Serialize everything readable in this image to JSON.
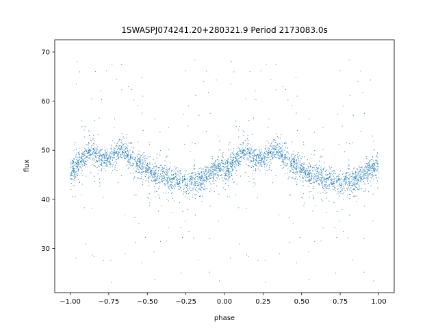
{
  "chart_data": {
    "type": "scatter",
    "title": "1SWASPJ074241.20+280321.9 Period 2173083.0s",
    "xlabel": "phase",
    "ylabel": "flux",
    "xlim": [
      -1.1,
      1.1
    ],
    "ylim": [
      21,
      72.5
    ],
    "x_ticks": [
      -1.0,
      -0.75,
      -0.5,
      -0.25,
      0.0,
      0.25,
      0.5,
      0.75,
      1.0
    ],
    "x_tick_labels": [
      "−1.00",
      "−0.75",
      "−0.50",
      "−0.25",
      "0.00",
      "0.25",
      "0.50",
      "0.75",
      "1.00"
    ],
    "y_ticks": [
      30,
      40,
      50,
      60,
      70
    ],
    "y_tick_labels": [
      "30",
      "40",
      "50",
      "60",
      "70"
    ],
    "grid": false,
    "legend": "none",
    "marker_color": "#1f77b4",
    "symmetry": "phase-folded light curve duplicated: points at phase p also plotted at p+1 (range −1 to 1)",
    "phase_profile": [
      {
        "phase": 0.0,
        "flux": 46
      },
      {
        "phase": 0.05,
        "flux": 47
      },
      {
        "phase": 0.1,
        "flux": 49
      },
      {
        "phase": 0.15,
        "flux": 50
      },
      {
        "phase": 0.2,
        "flux": 48
      },
      {
        "phase": 0.25,
        "flux": 48
      },
      {
        "phase": 0.3,
        "flux": 50
      },
      {
        "phase": 0.35,
        "flux": 50
      },
      {
        "phase": 0.4,
        "flux": 48
      },
      {
        "phase": 0.45,
        "flux": 47
      },
      {
        "phase": 0.5,
        "flux": 46
      },
      {
        "phase": 0.55,
        "flux": 45
      },
      {
        "phase": 0.6,
        "flux": 45
      },
      {
        "phase": 0.65,
        "flux": 44
      },
      {
        "phase": 0.7,
        "flux": 44
      },
      {
        "phase": 0.75,
        "flux": 43
      },
      {
        "phase": 0.8,
        "flux": 44
      },
      {
        "phase": 0.85,
        "flux": 44
      },
      {
        "phase": 0.9,
        "flux": 45
      },
      {
        "phase": 0.95,
        "flux": 46
      },
      {
        "phase": 1.0,
        "flux": 47
      }
    ],
    "flux_range": [
      23,
      69
    ]
  }
}
